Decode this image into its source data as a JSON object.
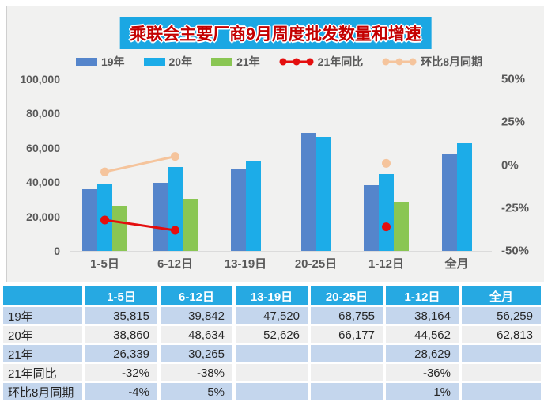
{
  "title": "乘联会主要厂商9月周度批发数量和增速",
  "colors": {
    "banner_bg": "#1BA7E3",
    "banner_text": "#C40000",
    "panel_bg": "#F1F1F0",
    "header_bg": "#26A9E2",
    "row_blue": "#C4D6ED",
    "row_gray": "#EFEFEF",
    "axis_text": "#595959"
  },
  "chart_data": {
    "type": "bar",
    "title": "乘联会主要厂商9月周度批发数量和增速",
    "categories": [
      "1-5日",
      "6-12日",
      "13-19日",
      "20-25日",
      "1-12日",
      "全月"
    ],
    "series": [
      {
        "name": "19年",
        "kind": "bar",
        "axis": "left",
        "color": "#5585CB",
        "values": [
          35815,
          39842,
          47520,
          68755,
          38164,
          56259
        ]
      },
      {
        "name": "20年",
        "kind": "bar",
        "axis": "left",
        "color": "#1CACE8",
        "values": [
          38860,
          48634,
          52626,
          66177,
          44562,
          62813
        ]
      },
      {
        "name": "21年",
        "kind": "bar",
        "axis": "left",
        "color": "#8AC653",
        "values": [
          26339,
          30265,
          null,
          null,
          28629,
          null
        ]
      },
      {
        "name": "21年同比",
        "kind": "line",
        "axis": "right",
        "color": "#E40E0E",
        "values": [
          -32,
          -38,
          null,
          null,
          -36,
          null
        ]
      },
      {
        "name": "环比8月同期",
        "kind": "line",
        "axis": "right",
        "color": "#F5C49C",
        "values": [
          -4,
          5,
          null,
          null,
          1,
          null
        ]
      }
    ],
    "left_axis": {
      "labels": [
        "100,000",
        "80,000",
        "60,000",
        "40,000",
        "20,000",
        "0"
      ],
      "values": [
        100000,
        80000,
        60000,
        40000,
        20000,
        0
      ],
      "min": 0,
      "max": 100000
    },
    "right_axis": {
      "labels": [
        "50%",
        "25%",
        "0%",
        "-25%",
        "-50%"
      ],
      "values": [
        50,
        25,
        0,
        -25,
        -50
      ],
      "min": -50,
      "max": 50
    },
    "grid": "off",
    "legend_position": "top"
  },
  "table": {
    "header": [
      "",
      "1-5日",
      "6-12日",
      "13-19日",
      "20-25日",
      "1-12日",
      "全月"
    ],
    "rows": [
      {
        "label": "19年",
        "values": [
          "35,815",
          "39,842",
          "47,520",
          "68,755",
          "38,164",
          "56,259"
        ]
      },
      {
        "label": "20年",
        "values": [
          "38,860",
          "48,634",
          "52,626",
          "66,177",
          "44,562",
          "62,813"
        ]
      },
      {
        "label": "21年",
        "values": [
          "26,339",
          "30,265",
          "",
          "",
          "28,629",
          ""
        ]
      },
      {
        "label": "21年同比",
        "values": [
          "-32%",
          "-38%",
          "",
          "",
          "-36%",
          ""
        ]
      },
      {
        "label": "环比8月同期",
        "values": [
          "-4%",
          "5%",
          "",
          "",
          "1%",
          ""
        ]
      }
    ]
  }
}
